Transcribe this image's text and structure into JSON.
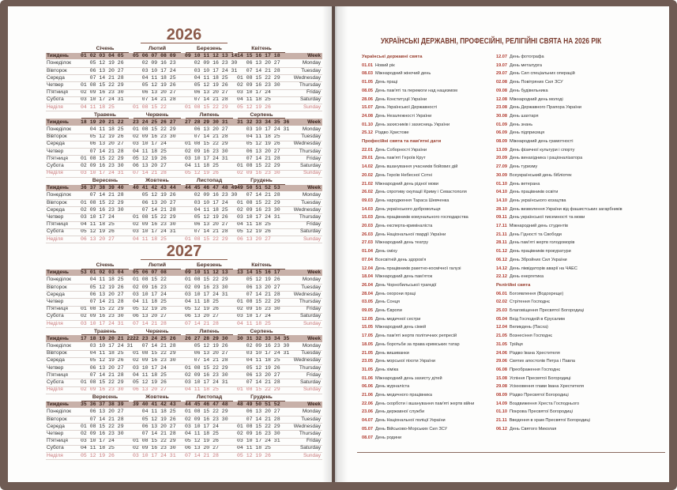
{
  "calendar": {
    "weekdays": [
      "Понеділок",
      "Вівторок",
      "Середа",
      "Четвер",
      "П'ятниця",
      "Субота",
      "Неділя"
    ],
    "weekdays_en": [
      "Monday",
      "Tuesday",
      "Wednesday",
      "Thursday",
      "Friday",
      "Saturday",
      "Sunday"
    ],
    "week_label": "Тиждень",
    "week_label_en": "Week",
    "years": [
      {
        "title": "2026",
        "months": [
          {
            "name": "Січень",
            "weeks": "01 02 03 04 05",
            "days": [
              "   05 12 19 26",
              "   06 13 20 27",
              "   07 14 21 28",
              "01 08 15 22 29",
              "02 09 16 23 30",
              "03 10 17 24 31",
              "04 11 18 25"
            ]
          },
          {
            "name": "Лютий",
            "weeks": "05 06 07 08 09",
            "days": [
              "   02 09 16 23",
              "   03 10 17 24",
              "   04 11 18 25",
              "   05 12 19 26",
              "   06 13 20 27",
              "   07 14 21 28",
              "01 08 15 22"
            ]
          },
          {
            "name": "Березень",
            "weeks": "09 10 11 12 13 14",
            "days": [
              "   02 09 16 23 30",
              "   03 10 17 24 31",
              "   04 11 18 25",
              "   05 12 19 26",
              "   06 13 20 27",
              "   07 14 21 28",
              "01 08 15 22 29"
            ]
          },
          {
            "name": "Квітень",
            "weeks": "14 15 16 17 18",
            "days": [
              "   06 13 20 27",
              "   07 14 21 28",
              "01 08 15 22 29",
              "02 09 16 23 30",
              "03 10 17 24",
              "04 11 18 25",
              "05 12 19 26"
            ]
          },
          {
            "name": "Травень",
            "weeks": "18 19 20 21 22",
            "days": [
              "   04 11 18 25",
              "   05 12 19 26",
              "   06 13 20 27",
              "   07 14 21 28",
              "01 08 15 22 29",
              "02 09 16 23 30",
              "03 10 17 24 31"
            ]
          },
          {
            "name": "Червень",
            "weeks": "23 24 25 26 27",
            "days": [
              "01 08 15 22 29",
              "02 09 16 23 30",
              "03 10 17 24",
              "04 11 18 25",
              "05 12 19 26",
              "06 13 20 27",
              "07 14 21 28"
            ]
          },
          {
            "name": "Липень",
            "weeks": "27 28 29 30 31",
            "days": [
              "   06 13 20 27",
              "   07 14 21 28",
              "01 08 15 22 29",
              "02 09 16 23 30",
              "03 10 17 24 31",
              "04 11 18 25",
              "05 12 19 26"
            ]
          },
          {
            "name": "Серпень",
            "weeks": "31 32 33 34 35 36",
            "days": [
              "   03 10 17 24 31",
              "   04 11 18 25",
              "   05 12 19 26",
              "   06 13 20 27",
              "   07 14 21 28",
              "01 08 15 22 29",
              "02 09 16 23 30"
            ]
          },
          {
            "name": "Вересень",
            "weeks": "36 37 38 39 40",
            "days": [
              "   07 14 21 28",
              "01 08 15 22 29",
              "02 09 16 23 30",
              "03 10 17 24",
              "04 11 18 25",
              "05 12 19 26",
              "06 13 20 27"
            ]
          },
          {
            "name": "Жовтень",
            "weeks": "40 41 42 43 44",
            "days": [
              "   05 12 19 26",
              "   06 13 20 27",
              "   07 14 21 28",
              "01 08 15 22 29",
              "02 09 16 23 30",
              "03 10 17 24 31",
              "04 11 18 25"
            ]
          },
          {
            "name": "Листопад",
            "weeks": "44 45 46 47 48 49",
            "days": [
              "   02 09 16 23 30",
              "   03 10 17 24",
              "   04 11 18 25",
              "   05 12 19 26",
              "   06 13 20 27",
              "   07 14 21 28",
              "01 08 15 22 29"
            ]
          },
          {
            "name": "Грудень",
            "weeks": "49 50 51 52 53",
            "days": [
              "   07 14 21 28",
              "01 08 15 22 29",
              "02 09 16 23 30",
              "03 10 17 24 31",
              "04 11 18 25",
              "05 12 19 26",
              "06 13 20 27"
            ]
          }
        ]
      },
      {
        "title": "2027",
        "months": [
          {
            "name": "Січень",
            "weeks": "53 01 02 03 04",
            "days": [
              "   04 11 18 25",
              "   05 12 19 26",
              "   06 13 20 27",
              "   07 14 21 28",
              "01 08 15 22 29",
              "02 09 16 23 30",
              "03 10 17 24 31"
            ]
          },
          {
            "name": "Лютий",
            "weeks": "05 06 07 08",
            "days": [
              "01 08 15 22",
              "02 09 16 23",
              "03 10 17 24",
              "04 11 18 25",
              "05 12 19 26",
              "06 13 20 27",
              "07 14 21 28"
            ]
          },
          {
            "name": "Березень",
            "weeks": "09 10 11 12 13",
            "days": [
              "01 08 15 22 29",
              "02 09 16 23 30",
              "03 10 17 24 31",
              "04 11 18 25",
              "05 12 19 26",
              "06 13 20 27",
              "07 14 21 28"
            ]
          },
          {
            "name": "Квітень",
            "weeks": "13 14 15 16 17",
            "days": [
              "   05 12 19 26",
              "   06 13 20 27",
              "   07 14 21 28",
              "01 08 15 22 29",
              "02 09 16 23 30",
              "03 10 17 24",
              "04 11 18 25"
            ]
          },
          {
            "name": "Травень",
            "weeks": "17 18 19 20 21 22",
            "days": [
              "   03 10 17 24 31",
              "   04 11 18 25",
              "   05 12 19 26",
              "   06 13 20 27",
              "   07 14 21 28",
              "01 08 15 22 29",
              "02 09 16 23 30"
            ]
          },
          {
            "name": "Червень",
            "weeks": "22 23 24 25 26",
            "days": [
              "   07 14 21 28",
              "01 08 15 22 29",
              "02 09 16 23 30",
              "03 10 17 24",
              "04 11 18 25",
              "05 12 19 26",
              "06 13 20 27"
            ]
          },
          {
            "name": "Липень",
            "weeks": "26 27 28 29 30",
            "days": [
              "   05 12 19 26",
              "   06 13 20 27",
              "   07 14 21 28",
              "01 08 15 22 29",
              "02 09 16 23 30",
              "03 10 17 24 31",
              "04 11 18 25"
            ]
          },
          {
            "name": "Серпень",
            "weeks": "30 31 32 33 34 35",
            "days": [
              "   02 09 16 23 30",
              "   03 10 17 24 31",
              "   04 11 18 25",
              "   05 12 19 26",
              "   06 13 20 27",
              "   07 14 21 28",
              "01 08 15 22 29"
            ]
          },
          {
            "name": "Вересень",
            "weeks": "35 36 37 38 39",
            "days": [
              "   06 13 20 27",
              "   07 14 21 28",
              "01 08 15 22 29",
              "02 09 16 23 30",
              "03 10 17 24",
              "04 11 18 25",
              "05 12 19 26"
            ]
          },
          {
            "name": "Жовтень",
            "weeks": "39 40 41 42 43",
            "days": [
              "   04 11 18 25",
              "   05 12 19 26",
              "   06 13 20 27",
              "   07 14 21 28",
              "01 08 15 22 29",
              "02 09 16 23 30",
              "03 10 17 24 31"
            ]
          },
          {
            "name": "Листопад",
            "weeks": "44 45 46 47 48",
            "days": [
              "01 08 15 22 29",
              "02 09 16 23 30",
              "03 10 17 24",
              "04 11 18 25",
              "05 12 19 26",
              "06 13 20 27",
              "07 14 21 28"
            ]
          },
          {
            "name": "Грудень",
            "weeks": "48 49 50 51 52",
            "days": [
              "   06 13 20 27",
              "   07 14 21 28",
              "01 08 15 22 29",
              "02 09 16 23 30",
              "03 10 17 24 31",
              "04 11 18 25",
              "05 12 19 26"
            ]
          }
        ]
      }
    ]
  },
  "holidays": {
    "title": "УКРАЇНСЬКІ ДЕРЖАВНІ, ПРОФЕСІЙНІ, РЕЛІГІЙНІ СВЯТА НА 2026 РІК",
    "columns": [
      [
        {
          "heading": "Українські державні свята"
        },
        {
          "date": "01.01",
          "text": "Новий рік"
        },
        {
          "date": "08.03",
          "text": "Міжнародний жіночий день"
        },
        {
          "date": "01.05",
          "text": "День праці"
        },
        {
          "date": "08.05",
          "text": "День пам'яті та перемоги над нацизмом"
        },
        {
          "date": "28.06",
          "text": "День Конституції України"
        },
        {
          "date": "15.07",
          "text": "День Української Державності"
        },
        {
          "date": "24.08",
          "text": "День Незалежності України"
        },
        {
          "date": "01.10",
          "text": "День захисників і захисниць України"
        },
        {
          "date": "25.12",
          "text": "Різдво Христове"
        },
        {
          "heading": "Професійні свята та пам'ятні дати"
        },
        {
          "date": "22.01",
          "text": "День Соборності України"
        },
        {
          "date": "29.01",
          "text": "День пам'яті Героїв Крут"
        },
        {
          "date": "14.02",
          "text": "День вшанування учасників бойових дій"
        },
        {
          "date": "20.02",
          "text": "День Героїв Небесної Сотні"
        },
        {
          "date": "21.02",
          "text": "Міжнародний день рідної мови"
        },
        {
          "date": "26.02",
          "text": "День спротиву окупації Криму і Севастополя"
        },
        {
          "date": "09.03",
          "text": "День народження Тараса Шевченка"
        },
        {
          "date": "14.03",
          "text": "День українського добровольця"
        },
        {
          "date": "15.03",
          "text": "День працівників комунального господарства"
        },
        {
          "date": "20.03",
          "text": "День експерта-криміналіста"
        },
        {
          "date": "26.03",
          "text": "День Національної гвардії України"
        },
        {
          "date": "27.03",
          "text": "Міжнародний день театру"
        },
        {
          "date": "01.04",
          "text": "День сміху"
        },
        {
          "date": "07.04",
          "text": "Всесвітній день здоров'я"
        },
        {
          "date": "12.04",
          "text": "День працівників ракетно-космічної галузі"
        },
        {
          "date": "18.04",
          "text": "Міжнародний день пам'яток"
        },
        {
          "date": "26.04",
          "text": "День Чорнобильської трагедії"
        },
        {
          "date": "28.04",
          "text": "День охорони праці"
        },
        {
          "date": "03.05",
          "text": "День Сонця"
        },
        {
          "date": "09.05",
          "text": "День Європи"
        },
        {
          "date": "12.05",
          "text": "День медичної сестри"
        },
        {
          "date": "15.05",
          "text": "Міжнародний день сімей"
        },
        {
          "date": "17.05",
          "text": "День пам'яті жертв політичних репресій"
        },
        {
          "date": "18.05",
          "text": "День боротьби за права кримських татар"
        },
        {
          "date": "21.05",
          "text": "День вишиванки"
        },
        {
          "date": "23.05",
          "text": "День морської піхоти України"
        },
        {
          "date": "31.05",
          "text": "День хіміка"
        },
        {
          "date": "01.06",
          "text": "Міжнародний день захисту дітей"
        },
        {
          "date": "06.06",
          "text": "День журналіста"
        },
        {
          "date": "21.06",
          "text": "День медичного працівника"
        },
        {
          "date": "22.06",
          "text": "День скорботи і вшанування пам'яті жертв війни"
        },
        {
          "date": "23.06",
          "text": "День державної служби"
        },
        {
          "date": "04.07",
          "text": "День Національної поліції України"
        },
        {
          "date": "05.07",
          "text": "День Військово-Морських Сил ЗСУ"
        },
        {
          "date": "08.07",
          "text": "День родини"
        }
      ],
      [
        {
          "date": "12.07",
          "text": "День фотографа"
        },
        {
          "date": "19.07",
          "text": "День металурга"
        },
        {
          "date": "29.07",
          "text": "День Сил спеціальних операцій"
        },
        {
          "date": "02.08",
          "text": "День Повітряних Сил ЗСУ"
        },
        {
          "date": "09.08",
          "text": "День будівельника"
        },
        {
          "date": "12.08",
          "text": "Міжнародний день молоді"
        },
        {
          "date": "23.08",
          "text": "День Державного Прапора України"
        },
        {
          "date": "30.08",
          "text": "День шахтаря"
        },
        {
          "date": "01.09",
          "text": "День знань"
        },
        {
          "date": "06.09",
          "text": "День підприємця"
        },
        {
          "date": "08.09",
          "text": "Міжнародний день грамотності"
        },
        {
          "date": "13.09",
          "text": "День фізичної культури і спорту"
        },
        {
          "date": "20.09",
          "text": "День винахідника і раціоналізатора"
        },
        {
          "date": "27.09",
          "text": "День туризму"
        },
        {
          "date": "30.09",
          "text": "Всеукраїнський день бібліотек"
        },
        {
          "date": "01.10",
          "text": "День ветерана"
        },
        {
          "date": "04.10",
          "text": "День працівників освіти"
        },
        {
          "date": "14.10",
          "text": "День українського козацтва"
        },
        {
          "date": "28.10",
          "text": "День визволення України від фашистських загарбників"
        },
        {
          "date": "09.11",
          "text": "День української писемності та мови"
        },
        {
          "date": "17.11",
          "text": "Міжнародний день студентів"
        },
        {
          "date": "21.11",
          "text": "День Гідності та Свободи"
        },
        {
          "date": "28.11",
          "text": "День пам'яті жертв голодоморів"
        },
        {
          "date": "01.12",
          "text": "День працівників прокуратури"
        },
        {
          "date": "06.12",
          "text": "День Збройних Сил України"
        },
        {
          "date": "14.12",
          "text": "День ліквідаторів аварії на ЧАЕС"
        },
        {
          "date": "22.12",
          "text": "День енергетика"
        },
        {
          "heading": "Релігійні свята"
        },
        {
          "date": "06.01",
          "text": "Богоявлення (Водохреще)"
        },
        {
          "date": "02.02",
          "text": "Стрітення Господнє"
        },
        {
          "date": "25.03",
          "text": "Благовіщення Пресвятої Богородиці"
        },
        {
          "date": "05.04",
          "text": "Вхід Господній в Єрусалим"
        },
        {
          "date": "12.04",
          "text": "Великдень (Пасха)"
        },
        {
          "date": "21.05",
          "text": "Вознесіння Господнє"
        },
        {
          "date": "31.05",
          "text": "Трійця"
        },
        {
          "date": "24.06",
          "text": "Різдво Івана Хрестителя"
        },
        {
          "date": "29.06",
          "text": "Святих апостолів Петра і Павла"
        },
        {
          "date": "06.08",
          "text": "Преображення Господнє"
        },
        {
          "date": "15.08",
          "text": "Успіння Пресвятої Богородиці"
        },
        {
          "date": "29.08",
          "text": "Усікновення глави Івана Хрестителя"
        },
        {
          "date": "08.09",
          "text": "Різдво Пресвятої Богородиці"
        },
        {
          "date": "14.09",
          "text": "Воздвиження Хреста Господнього"
        },
        {
          "date": "01.10",
          "text": "Покрова Пресвятої Богородиці"
        },
        {
          "date": "21.11",
          "text": "Введення в храм Пресвятої Богородиці"
        },
        {
          "date": "06.12",
          "text": "День Святого Миколая"
        }
      ]
    ]
  }
}
